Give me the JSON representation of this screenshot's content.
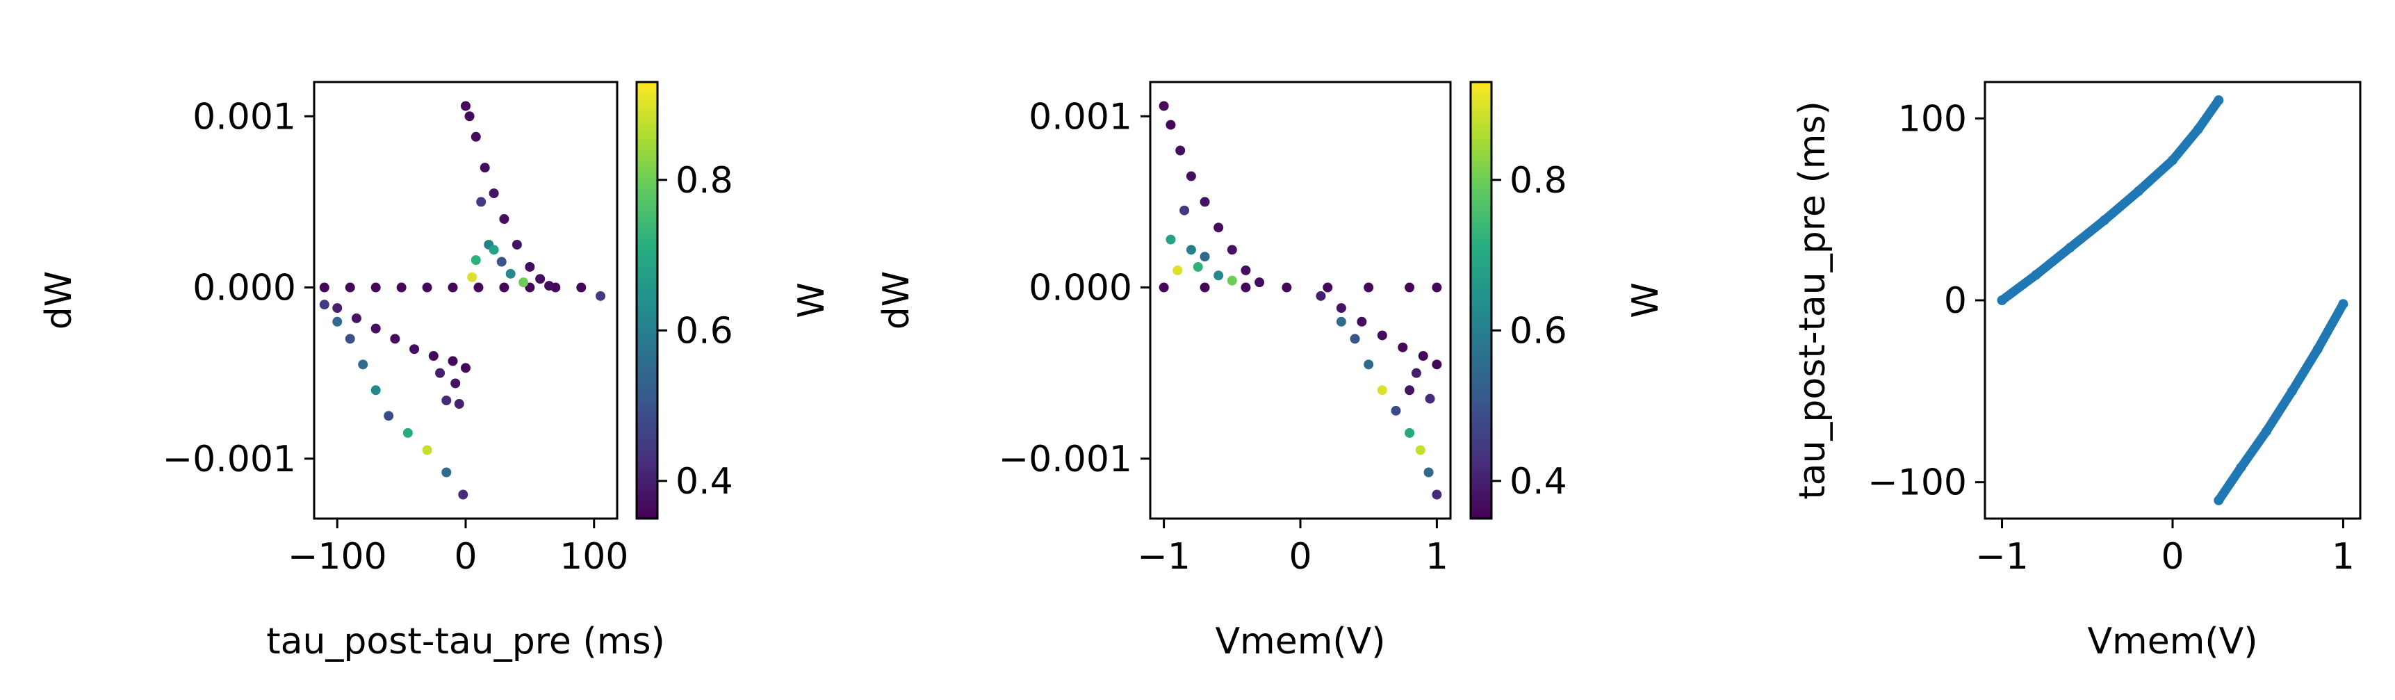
{
  "chart_data": [
    {
      "type": "scatter",
      "xlabel": "tau_post-tau_pre (ms)",
      "ylabel": "dW",
      "xlim": [
        -118,
        118
      ],
      "ylim": [
        -0.00135,
        0.0012
      ],
      "xticks": [
        {
          "v": -100,
          "label": "−100"
        },
        {
          "v": 0,
          "label": "0"
        },
        {
          "v": 100,
          "label": "100"
        }
      ],
      "yticks": [
        {
          "v": 0.001,
          "label": "0.001"
        },
        {
          "v": 0,
          "label": "0.000"
        },
        {
          "v": -0.001,
          "label": "−0.001"
        }
      ],
      "colorbar": {
        "label": "W",
        "range": [
          0.35,
          0.93
        ],
        "ticks": [
          {
            "v": 0.4,
            "label": "0.4"
          },
          {
            "v": 0.6,
            "label": "0.6"
          },
          {
            "v": 0.8,
            "label": "0.8"
          }
        ]
      },
      "points": [
        {
          "x": -110,
          "y": 0,
          "w": 0.36
        },
        {
          "x": -90,
          "y": 0,
          "w": 0.36
        },
        {
          "x": -70,
          "y": 0,
          "w": 0.36
        },
        {
          "x": -50,
          "y": 0,
          "w": 0.36
        },
        {
          "x": -30,
          "y": 0,
          "w": 0.36
        },
        {
          "x": -10,
          "y": 0,
          "w": 0.36
        },
        {
          "x": 10,
          "y": 0,
          "w": 0.36
        },
        {
          "x": 30,
          "y": 0,
          "w": 0.36
        },
        {
          "x": 50,
          "y": 0,
          "w": 0.36
        },
        {
          "x": 70,
          "y": 0,
          "w": 0.36
        },
        {
          "x": 90,
          "y": 0,
          "w": 0.36
        },
        {
          "x": 105,
          "y": -5e-05,
          "w": 0.45
        },
        {
          "x": 0,
          "y": 0.00106,
          "w": 0.36
        },
        {
          "x": 3,
          "y": 0.001,
          "w": 0.36
        },
        {
          "x": 8,
          "y": 0.00088,
          "w": 0.37
        },
        {
          "x": 15,
          "y": 0.0007,
          "w": 0.37
        },
        {
          "x": 22,
          "y": 0.00055,
          "w": 0.38
        },
        {
          "x": 30,
          "y": 0.0004,
          "w": 0.37
        },
        {
          "x": 40,
          "y": 0.00025,
          "w": 0.38
        },
        {
          "x": 50,
          "y": 0.00012,
          "w": 0.37
        },
        {
          "x": 58,
          "y": 5e-05,
          "w": 0.37
        },
        {
          "x": 65,
          "y": 1e-05,
          "w": 0.37
        },
        {
          "x": 12,
          "y": 0.0005,
          "w": 0.45
        },
        {
          "x": 18,
          "y": 0.00025,
          "w": 0.6
        },
        {
          "x": 22,
          "y": 0.00022,
          "w": 0.68
        },
        {
          "x": 8,
          "y": 0.00016,
          "w": 0.72
        },
        {
          "x": 28,
          "y": 0.00015,
          "w": 0.5
        },
        {
          "x": 5,
          "y": 6e-05,
          "w": 0.9
        },
        {
          "x": 35,
          "y": 8e-05,
          "w": 0.62
        },
        {
          "x": 45,
          "y": 3e-05,
          "w": 0.8
        },
        {
          "x": -110,
          "y": -0.0001,
          "w": 0.45
        },
        {
          "x": -100,
          "y": -0.00012,
          "w": 0.4
        },
        {
          "x": -85,
          "y": -0.00018,
          "w": 0.38
        },
        {
          "x": -70,
          "y": -0.00024,
          "w": 0.37
        },
        {
          "x": -55,
          "y": -0.0003,
          "w": 0.37
        },
        {
          "x": -40,
          "y": -0.00036,
          "w": 0.37
        },
        {
          "x": -25,
          "y": -0.0004,
          "w": 0.36
        },
        {
          "x": -10,
          "y": -0.00043,
          "w": 0.36
        },
        {
          "x": 0,
          "y": -0.00047,
          "w": 0.36
        },
        {
          "x": -20,
          "y": -0.0005,
          "w": 0.4
        },
        {
          "x": -15,
          "y": -0.00066,
          "w": 0.42
        },
        {
          "x": -5,
          "y": -0.00068,
          "w": 0.4
        },
        {
          "x": -8,
          "y": -0.00056,
          "w": 0.38
        },
        {
          "x": -100,
          "y": -0.0002,
          "w": 0.55
        },
        {
          "x": -90,
          "y": -0.0003,
          "w": 0.5
        },
        {
          "x": -80,
          "y": -0.00045,
          "w": 0.55
        },
        {
          "x": -70,
          "y": -0.0006,
          "w": 0.62
        },
        {
          "x": -60,
          "y": -0.00075,
          "w": 0.48
        },
        {
          "x": -45,
          "y": -0.00085,
          "w": 0.7
        },
        {
          "x": -30,
          "y": -0.00095,
          "w": 0.88
        },
        {
          "x": -15,
          "y": -0.00108,
          "w": 0.55
        },
        {
          "x": -2,
          "y": -0.00121,
          "w": 0.42
        }
      ]
    },
    {
      "type": "scatter",
      "xlabel": "Vmem(V)",
      "ylabel": "dW",
      "xlim": [
        -1.1,
        1.1
      ],
      "ylim": [
        -0.00135,
        0.0012
      ],
      "xticks": [
        {
          "v": -1,
          "label": "−1"
        },
        {
          "v": 0,
          "label": "0"
        },
        {
          "v": 1,
          "label": "1"
        }
      ],
      "yticks": [
        {
          "v": 0.001,
          "label": "0.001"
        },
        {
          "v": 0,
          "label": "0.000"
        },
        {
          "v": -0.001,
          "label": "−0.001"
        }
      ],
      "colorbar": {
        "label": "W",
        "range": [
          0.35,
          0.93
        ],
        "ticks": [
          {
            "v": 0.4,
            "label": "0.4"
          },
          {
            "v": 0.6,
            "label": "0.6"
          },
          {
            "v": 0.8,
            "label": "0.8"
          }
        ]
      },
      "points": [
        {
          "x": -1.0,
          "y": 0,
          "w": 0.36
        },
        {
          "x": -0.7,
          "y": 0,
          "w": 0.36
        },
        {
          "x": -0.4,
          "y": 0,
          "w": 0.36
        },
        {
          "x": -0.1,
          "y": 0,
          "w": 0.36
        },
        {
          "x": 0.2,
          "y": 0,
          "w": 0.36
        },
        {
          "x": 0.5,
          "y": 0,
          "w": 0.36
        },
        {
          "x": 0.8,
          "y": 0,
          "w": 0.36
        },
        {
          "x": 1.0,
          "y": 0,
          "w": 0.36
        },
        {
          "x": -1.0,
          "y": 0.00106,
          "w": 0.36
        },
        {
          "x": -0.95,
          "y": 0.00095,
          "w": 0.36
        },
        {
          "x": -0.88,
          "y": 0.0008,
          "w": 0.37
        },
        {
          "x": -0.8,
          "y": 0.00065,
          "w": 0.37
        },
        {
          "x": -0.7,
          "y": 0.0005,
          "w": 0.38
        },
        {
          "x": -0.6,
          "y": 0.00035,
          "w": 0.37
        },
        {
          "x": -0.5,
          "y": 0.00022,
          "w": 0.38
        },
        {
          "x": -0.4,
          "y": 0.0001,
          "w": 0.37
        },
        {
          "x": -0.3,
          "y": 3e-05,
          "w": 0.37
        },
        {
          "x": -0.85,
          "y": 0.00045,
          "w": 0.45
        },
        {
          "x": -0.95,
          "y": 0.00028,
          "w": 0.68
        },
        {
          "x": -0.8,
          "y": 0.00022,
          "w": 0.6
        },
        {
          "x": -0.7,
          "y": 0.00018,
          "w": 0.55
        },
        {
          "x": -0.9,
          "y": 0.0001,
          "w": 0.9
        },
        {
          "x": -0.75,
          "y": 0.00012,
          "w": 0.72
        },
        {
          "x": -0.6,
          "y": 7e-05,
          "w": 0.62
        },
        {
          "x": -0.5,
          "y": 4e-05,
          "w": 0.8
        },
        {
          "x": 0.15,
          "y": -5e-05,
          "w": 0.4
        },
        {
          "x": 0.3,
          "y": -0.00012,
          "w": 0.38
        },
        {
          "x": 0.45,
          "y": -0.0002,
          "w": 0.37
        },
        {
          "x": 0.6,
          "y": -0.00028,
          "w": 0.37
        },
        {
          "x": 0.75,
          "y": -0.00035,
          "w": 0.36
        },
        {
          "x": 0.9,
          "y": -0.0004,
          "w": 0.36
        },
        {
          "x": 1.0,
          "y": -0.00045,
          "w": 0.36
        },
        {
          "x": 0.85,
          "y": -0.0005,
          "w": 0.4
        },
        {
          "x": 0.95,
          "y": -0.00065,
          "w": 0.42
        },
        {
          "x": 0.8,
          "y": -0.0006,
          "w": 0.38
        },
        {
          "x": 0.3,
          "y": -0.0002,
          "w": 0.55
        },
        {
          "x": 0.4,
          "y": -0.0003,
          "w": 0.5
        },
        {
          "x": 0.5,
          "y": -0.00045,
          "w": 0.55
        },
        {
          "x": 0.6,
          "y": -0.0006,
          "w": 0.9
        },
        {
          "x": 0.7,
          "y": -0.00072,
          "w": 0.48
        },
        {
          "x": 0.8,
          "y": -0.00085,
          "w": 0.7
        },
        {
          "x": 0.88,
          "y": -0.00095,
          "w": 0.88
        },
        {
          "x": 0.94,
          "y": -0.00108,
          "w": 0.55
        },
        {
          "x": 1.0,
          "y": -0.00121,
          "w": 0.42
        }
      ]
    },
    {
      "type": "scatter",
      "xlabel": "Vmem(V)",
      "ylabel": "tau_post-tau_pre (ms)",
      "xlim": [
        -1.1,
        1.1
      ],
      "ylim": [
        -120,
        120
      ],
      "color": "#1f77b4",
      "xticks": [
        {
          "v": -1,
          "label": "−1"
        },
        {
          "v": 0,
          "label": "0"
        },
        {
          "v": 1,
          "label": "1"
        }
      ],
      "yticks": [
        {
          "v": 100,
          "label": "100"
        },
        {
          "v": 0,
          "label": "0"
        },
        {
          "v": -100,
          "label": "−100"
        }
      ],
      "series": [
        {
          "x": [
            -1.0,
            -0.8,
            -0.6,
            -0.4,
            -0.2,
            0.0,
            0.15,
            0.27
          ],
          "y": [
            0,
            14,
            29,
            44,
            60,
            77,
            94,
            110
          ]
        },
        {
          "x": [
            0.27,
            0.4,
            0.55,
            0.7,
            0.85,
            1.0
          ],
          "y": [
            -110,
            -92,
            -72,
            -50,
            -27,
            -2
          ]
        }
      ]
    }
  ]
}
